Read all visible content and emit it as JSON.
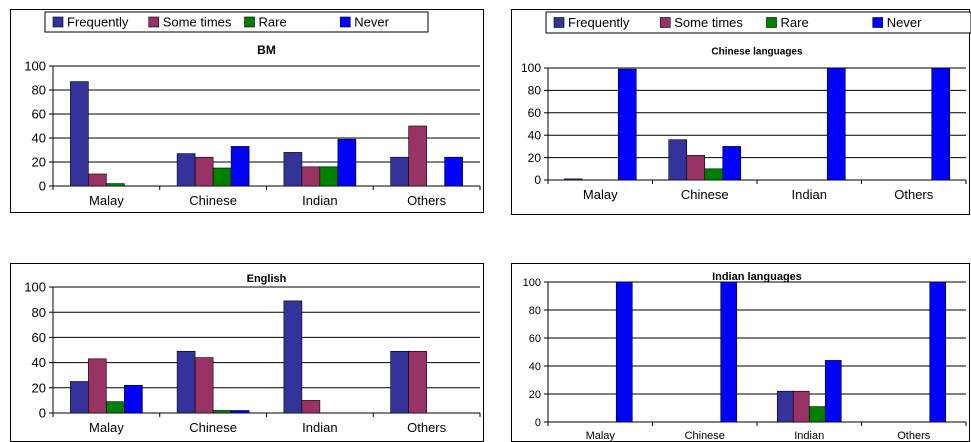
{
  "legend": {
    "entries": [
      {
        "name": "Frequently",
        "color": "#333399"
      },
      {
        "name": "Some times",
        "color": "#993366"
      },
      {
        "name": "Rare",
        "color": "#008000"
      },
      {
        "name": "Never",
        "color": "#0000ff"
      }
    ]
  },
  "chart_data": [
    {
      "type": "bar",
      "title": "BM",
      "categories": [
        "Malay",
        "Chinese",
        "Indian",
        "Others"
      ],
      "ylim": [
        0,
        100
      ],
      "yticks": [
        0,
        20,
        40,
        60,
        80,
        100
      ],
      "grid": true,
      "legend": "top",
      "series": [
        {
          "name": "Frequently",
          "values": [
            87,
            27,
            28,
            24
          ]
        },
        {
          "name": "Some times",
          "values": [
            10,
            24,
            16,
            50
          ]
        },
        {
          "name": "Rare",
          "values": [
            2,
            15,
            16,
            0
          ]
        },
        {
          "name": "Never",
          "values": [
            0,
            33,
            39,
            24
          ]
        }
      ]
    },
    {
      "type": "bar",
      "title": "Chinese languages",
      "categories": [
        "Malay",
        "Chinese",
        "Indian",
        "Others"
      ],
      "ylim": [
        0,
        100
      ],
      "yticks": [
        0,
        20,
        40,
        60,
        80,
        100
      ],
      "grid": true,
      "legend": "top",
      "series": [
        {
          "name": "Frequently",
          "values": [
            1,
            36,
            0,
            0
          ]
        },
        {
          "name": "Some times",
          "values": [
            0,
            22,
            0,
            0
          ]
        },
        {
          "name": "Rare",
          "values": [
            0,
            10,
            0,
            0
          ]
        },
        {
          "name": "Never",
          "values": [
            99,
            30,
            100,
            100
          ]
        }
      ]
    },
    {
      "type": "bar",
      "title": "English",
      "categories": [
        "Malay",
        "Chinese",
        "Indian",
        "Others"
      ],
      "ylim": [
        0,
        100
      ],
      "yticks": [
        0,
        20,
        40,
        60,
        80,
        100
      ],
      "grid": true,
      "series": [
        {
          "name": "Frequently",
          "values": [
            25,
            49,
            89,
            49
          ]
        },
        {
          "name": "Some times",
          "values": [
            43,
            44,
            10,
            49
          ]
        },
        {
          "name": "Rare",
          "values": [
            9,
            2,
            0,
            0
          ]
        },
        {
          "name": "Never",
          "values": [
            22,
            2,
            0,
            0
          ]
        }
      ]
    },
    {
      "type": "bar",
      "title": "Indian languages",
      "categories": [
        "Malay",
        "Chinese",
        "Indian",
        "Others"
      ],
      "ylim": [
        0,
        100
      ],
      "yticks": [
        0,
        20,
        40,
        60,
        80,
        100
      ],
      "grid": true,
      "series": [
        {
          "name": "Frequently",
          "values": [
            0,
            0,
            22,
            0
          ]
        },
        {
          "name": "Some times",
          "values": [
            0,
            0,
            22,
            0
          ]
        },
        {
          "name": "Rare",
          "values": [
            0,
            0,
            11,
            0
          ]
        },
        {
          "name": "Never",
          "values": [
            100,
            100,
            44,
            100
          ]
        }
      ]
    }
  ]
}
